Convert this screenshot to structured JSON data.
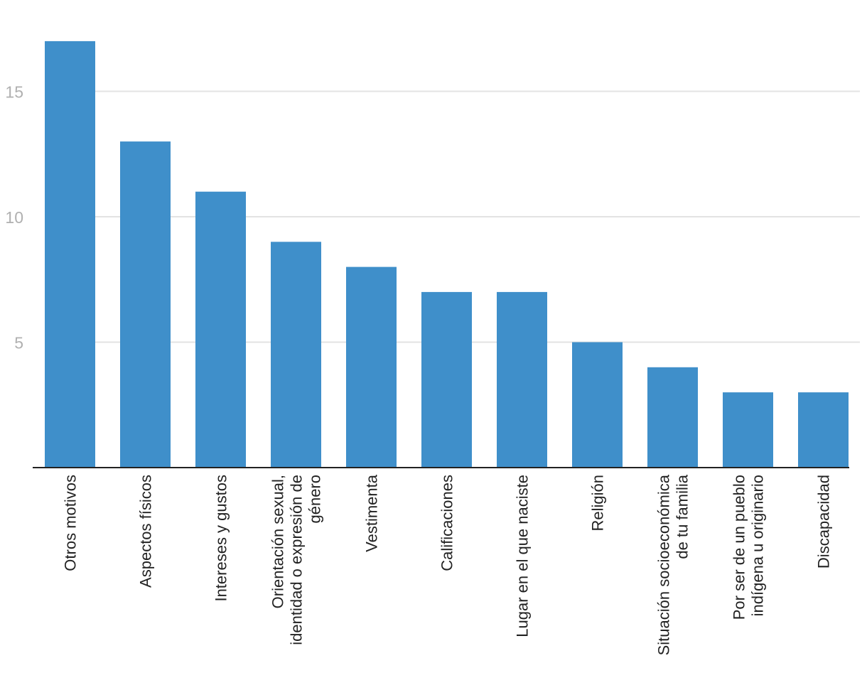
{
  "chart_data": {
    "type": "bar",
    "title": "",
    "xlabel": "",
    "ylabel": "",
    "ylim": [
      0,
      18
    ],
    "yticks": [
      5,
      10,
      15
    ],
    "grid": true,
    "bar_color": "#3f8fca",
    "categories": [
      [
        "Otros motivos"
      ],
      [
        "Aspectos físicos"
      ],
      [
        "Intereses y gustos"
      ],
      [
        "Orientación sexual,",
        "identidad o expresión de",
        "género"
      ],
      [
        "Vestimenta"
      ],
      [
        "Calificaciones"
      ],
      [
        "Lugar en el que naciste"
      ],
      [
        "Religión"
      ],
      [
        "Situación socioeconómica",
        "de tu familia"
      ],
      [
        "Por ser de un pueblo",
        "indígena u originario"
      ],
      [
        "Discapacidad"
      ]
    ],
    "values": [
      17,
      13,
      11,
      9,
      8,
      7,
      7,
      5,
      4,
      3,
      3
    ]
  }
}
